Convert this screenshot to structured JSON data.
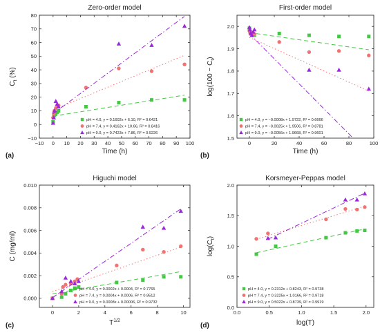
{
  "colors": {
    "s1": "#44c744",
    "s2": "#f07373",
    "s3": "#9a27d9"
  },
  "chart_data": [
    {
      "type": "scatter",
      "panel_label": "(a)",
      "title": "Zero-order model",
      "xlabel": "Time (h)",
      "ylabel_main": "C",
      "ylabel_sub": "t",
      "ylabel_tail": " (%)",
      "xlim": [
        -10,
        100
      ],
      "ylim": [
        -10,
        80
      ],
      "xticks": [
        -10,
        0,
        10,
        20,
        30,
        40,
        50,
        60,
        70,
        80,
        90,
        100
      ],
      "xtick_labels": [
        "−10",
        "0",
        "10",
        "20",
        "30",
        "40",
        "50",
        "60",
        "70",
        "80",
        "90",
        "100"
      ],
      "yticks": [
        -10,
        0,
        10,
        20,
        30,
        40,
        50,
        60,
        70,
        80
      ],
      "ytick_labels": [
        "−10",
        "0",
        "10",
        "20",
        "30",
        "40",
        "50",
        "60",
        "70",
        "80"
      ],
      "legend_position": "bottom-right",
      "series": [
        {
          "name": "pH = 4.0, y = 0.1602x + 6.10, R² = 0.6421",
          "marker": "square",
          "color": "#44c744",
          "line": "dash",
          "x": [
            0,
            0.5,
            1,
            2,
            3,
            4,
            24,
            48,
            72,
            96
          ],
          "y": [
            2,
            6,
            7,
            8,
            9,
            10,
            13,
            16,
            18,
            18
          ],
          "fit": [
            0.1602,
            6.1
          ]
        },
        {
          "name": "pH = 7.4, y = 0.4162x + 10.66, R² = 0.8416",
          "marker": "circle",
          "color": "#f07373",
          "line": "dot",
          "x": [
            0,
            0.5,
            1,
            2,
            3,
            4,
            24,
            48,
            72,
            96
          ],
          "y": [
            5,
            8,
            10,
            12,
            13,
            14,
            27,
            41,
            39,
            44
          ],
          "fit": [
            0.4162,
            10.66
          ]
        },
        {
          "name": "pH = 9.0, y = 0.7423x + 7.86, R² = 0.9226",
          "marker": "triangle",
          "color": "#9a27d9",
          "line": "dashdot",
          "x": [
            0,
            0.5,
            1,
            2,
            3,
            4,
            48,
            72,
            96
          ],
          "y": [
            1,
            5,
            10,
            17,
            15,
            13,
            59,
            58,
            72
          ],
          "fit": [
            0.7423,
            7.86
          ]
        }
      ]
    },
    {
      "type": "scatter",
      "panel_label": "(b)",
      "title": "First-order model",
      "xlabel": "Time (h)",
      "ylabel_main": "log(100 − C",
      "ylabel_sub": "t",
      "ylabel_tail": ")",
      "xlim": [
        -10,
        100
      ],
      "ylim": [
        1.5,
        2.05
      ],
      "xticks": [
        0,
        20,
        40,
        60,
        80,
        100
      ],
      "xtick_labels": [
        "0",
        "20",
        "40",
        "60",
        "80",
        "100"
      ],
      "yticks": [
        1.5,
        1.6,
        1.7,
        1.8,
        1.9,
        2.0
      ],
      "ytick_labels": [
        "1.5",
        "1.6",
        "1.7",
        "1.8",
        "1.9",
        "2.0"
      ],
      "legend_position": "bottom-left",
      "series": [
        {
          "name": "pH = 4.0, y = −0.0008x + 1.9722, R² = 0.6666",
          "marker": "square",
          "color": "#44c744",
          "line": "dash",
          "x": [
            0,
            0.5,
            1,
            2,
            3,
            4,
            24,
            48,
            72,
            96
          ],
          "y": [
            1.992,
            1.975,
            1.97,
            1.965,
            1.962,
            1.96,
            1.968,
            1.96,
            1.955,
            1.955
          ],
          "fit": [
            -0.0008,
            1.9722
          ]
        },
        {
          "name": "pH = 7.4, y = −0.0025x + 1.9506, R² = 0.8781",
          "marker": "circle",
          "color": "#f07373",
          "line": "dot",
          "x": [
            0,
            0.5,
            1,
            2,
            3,
            4,
            24,
            48,
            72,
            96
          ],
          "y": [
            1.98,
            1.975,
            1.965,
            1.96,
            1.97,
            1.965,
            1.93,
            1.885,
            1.89,
            1.87
          ],
          "fit": [
            -0.0025,
            1.9506
          ]
        },
        {
          "name": "pH = 9.0, y = −0.0056x + 1.9668, R² = 0.9601",
          "marker": "triangle",
          "color": "#9a27d9",
          "line": "dashdot",
          "x": [
            0,
            0.5,
            1,
            2,
            3,
            4,
            48,
            72,
            96
          ],
          "y": [
            1.995,
            1.985,
            1.97,
            1.96,
            1.975,
            1.985,
            1.805,
            1.805,
            1.72
          ],
          "fit": [
            -0.0056,
            1.9668
          ]
        }
      ]
    },
    {
      "type": "scatter",
      "panel_label": "(c)",
      "title": "Higuchi model",
      "xlabel_main": "T",
      "xlabel_sup": "1/2",
      "ylabel_main": "C (mg/ml)",
      "ylabel_sub": "",
      "ylabel_tail": "",
      "xlim": [
        -1,
        10.5
      ],
      "ylim": [
        -0.0008,
        0.01
      ],
      "xticks": [
        0,
        2,
        4,
        6,
        8,
        10
      ],
      "xtick_labels": [
        "0",
        "2",
        "4",
        "6",
        "8",
        "10"
      ],
      "yticks": [
        0,
        0.002,
        0.004,
        0.006,
        0.008,
        0.01
      ],
      "ytick_labels": [
        "0.000",
        "0.002",
        "0.004",
        "0.006",
        "0.008",
        "0.010"
      ],
      "legend_position": "bottom-right",
      "series": [
        {
          "name": "pH = 4.0, y = 0.0002x + 0.0004, R² = 0.7765",
          "marker": "square",
          "color": "#44c744",
          "line": "dash",
          "x": [
            0,
            0.7,
            1,
            1.4,
            1.7,
            2.0,
            4.9,
            6.9,
            8.5,
            9.8
          ],
          "y": [
            0,
            0.0001,
            0.0004,
            0.0007,
            0.0009,
            0.001,
            0.0014,
            0.0016,
            0.0019,
            0.0019
          ],
          "fit": [
            0.0002,
            0.0004
          ]
        },
        {
          "name": "pH = 7.4, y = 0.0004x + 0.0006, R² = 0.9512",
          "marker": "circle",
          "color": "#f07373",
          "line": "dot",
          "x": [
            0,
            0.7,
            0.8,
            1.0,
            1.4,
            1.7,
            1.9,
            4.9,
            6.9,
            8.5,
            9.8
          ],
          "y": [
            0,
            0.0004,
            0.001,
            0.0012,
            0.0013,
            0.0015,
            0.0017,
            0.0029,
            0.0043,
            0.0041,
            0.0046
          ],
          "fit": [
            0.0004,
            0.0006
          ]
        },
        {
          "name": "pH = 9.0, y = 0.0008x + 0.00006, R² = 0.9732",
          "marker": "triangle",
          "color": "#9a27d9",
          "line": "dashdot",
          "x": [
            0,
            0.7,
            1,
            1.4,
            1.7,
            2.0,
            6.9,
            8.5,
            9.8
          ],
          "y": [
            0,
            0.0006,
            0.0018,
            0.0015,
            0.0013,
            0.0015,
            0.0063,
            0.0062,
            0.0077
          ],
          "fit": [
            0.0008,
            6e-05
          ]
        }
      ]
    },
    {
      "type": "scatter",
      "panel_label": "(d)",
      "title": "Korsmeyer-Peppas model",
      "xlabel": "log(T)",
      "ylabel_main": "log(C",
      "ylabel_sub": "t",
      "ylabel_tail": ")",
      "xlim": [
        0,
        2.12
      ],
      "ylim": [
        0,
        2.0
      ],
      "xticks": [
        0,
        0.5,
        1.0,
        1.5,
        2.0
      ],
      "xtick_labels": [
        "0.0",
        "0.5",
        "1.0",
        "1.5",
        "2.0"
      ],
      "yticks": [
        0,
        0.5,
        1.0,
        1.5,
        2.0
      ],
      "ytick_labels": [
        "0.0",
        "0.5",
        "1.0",
        "1.5",
        "2.0"
      ],
      "legend_position": "bottom-right",
      "series": [
        {
          "name": "pH = 4.0, y = 0.2312x + 0.8243, R² = 0.9738",
          "marker": "square",
          "color": "#44c744",
          "line": "dash",
          "x": [
            0.3,
            0.6,
            1.38,
            1.68,
            1.86,
            1.98
          ],
          "y": [
            0.87,
            1.0,
            1.14,
            1.22,
            1.25,
            1.26
          ],
          "fit": [
            0.2312,
            0.8243
          ]
        },
        {
          "name": "pH = 7.4, y = 0.3225x + 1.0166, R² = 0.9718",
          "marker": "circle",
          "color": "#f07373",
          "line": "dot",
          "x": [
            0.3,
            0.48,
            1.38,
            1.68,
            1.86,
            1.98
          ],
          "y": [
            1.12,
            1.21,
            1.44,
            1.61,
            1.6,
            1.64
          ],
          "fit": [
            0.3225,
            1.0166
          ]
        },
        {
          "name": "pH = 9.0, y = 0.5022x + 0.8739, R² = 0.9919",
          "marker": "triangle",
          "color": "#9a27d9",
          "line": "dashdot",
          "x": [
            0.48,
            0.6,
            1.68,
            1.86,
            1.98
          ],
          "y": [
            1.13,
            1.14,
            1.76,
            1.76,
            1.86
          ],
          "fit": [
            0.5022,
            0.8739
          ]
        }
      ]
    }
  ]
}
